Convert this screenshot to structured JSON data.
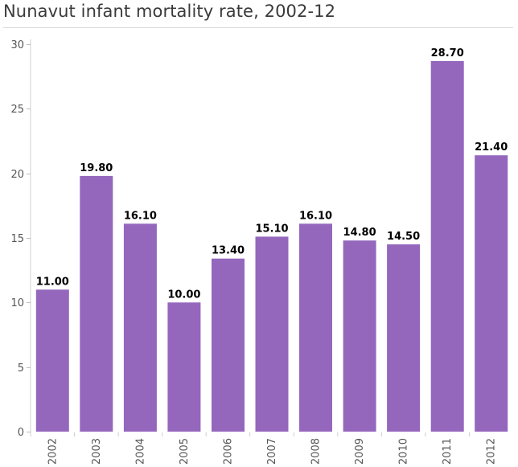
{
  "chart_data": {
    "type": "bar",
    "title": "Nunavut infant mortality rate, 2002-12",
    "xlabel": "",
    "ylabel": "",
    "categories": [
      "2002",
      "2003",
      "2004",
      "2005",
      "2006",
      "2007",
      "2008",
      "2009",
      "2010",
      "2011",
      "2012"
    ],
    "values": [
      11.0,
      19.8,
      16.1,
      10.0,
      13.4,
      15.1,
      16.1,
      14.8,
      14.5,
      28.7,
      21.4
    ],
    "value_labels": [
      "11.00",
      "19.80",
      "16.10",
      "10.00",
      "13.40",
      "15.10",
      "16.10",
      "14.80",
      "14.50",
      "28.70",
      "21.40"
    ],
    "ylim": [
      0,
      30
    ],
    "yticks": [
      "0",
      "5",
      "10",
      "15",
      "20",
      "25",
      "30"
    ],
    "grid": false,
    "bar_color": "#9467bd"
  }
}
